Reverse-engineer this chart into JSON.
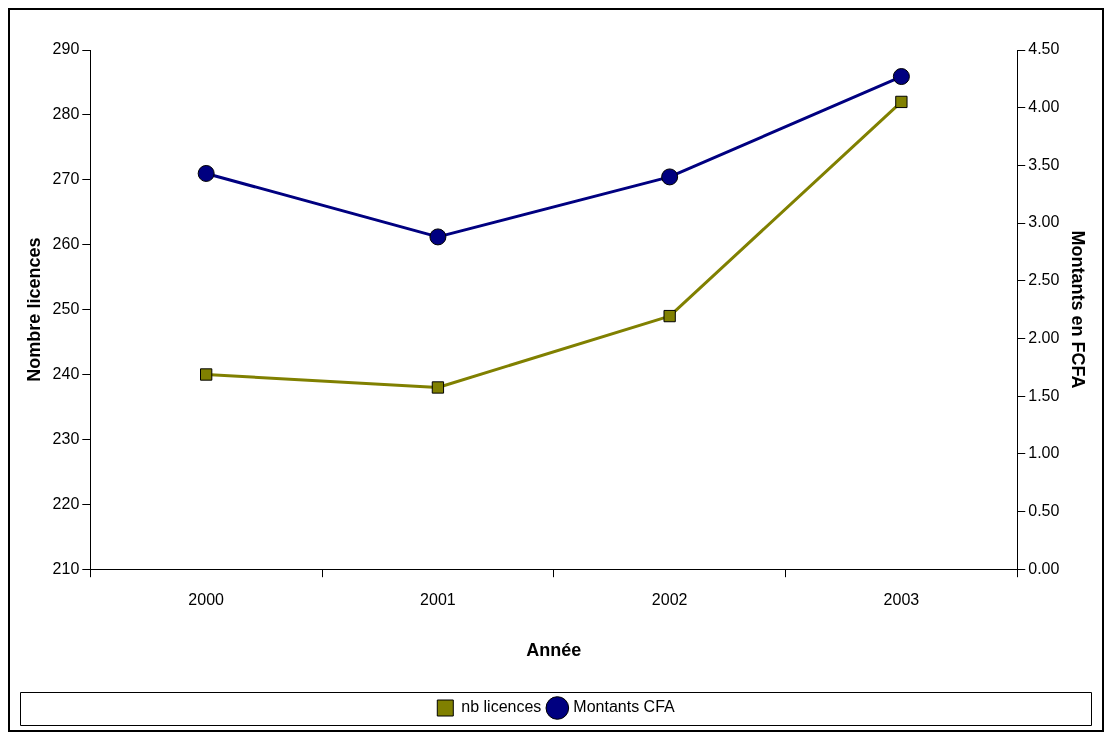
{
  "chart_data": {
    "type": "line",
    "xlabel": "Année",
    "ylabel": "Nombre licences",
    "y2label": "Montants en FCFA",
    "categories": [
      "2000",
      "2001",
      "2002",
      "2003"
    ],
    "series": [
      {
        "name": "nb licences",
        "color": "#808000",
        "marker": "square",
        "values": [
          240,
          238,
          249,
          282
        ]
      },
      {
        "name": "Montants CFA",
        "color": "#000080",
        "marker": "circle",
        "axis": "y2",
        "values": [
          3.43,
          2.88,
          3.4,
          4.27
        ]
      }
    ],
    "ylim": [
      210,
      290
    ],
    "yticks": [
      210,
      220,
      230,
      240,
      250,
      260,
      270,
      280,
      290
    ],
    "y2lim": [
      0,
      4.5
    ],
    "y2ticks": [
      {
        "value": 0,
        "label": "0.00"
      },
      {
        "value": 0.5,
        "label": "0.50"
      },
      {
        "value": 1,
        "label": "1.00"
      },
      {
        "value": 1.5,
        "label": "1.50"
      },
      {
        "value": 2,
        "label": "2.00"
      },
      {
        "value": 2.5,
        "label": "2.50"
      },
      {
        "value": 3,
        "label": "3.00"
      },
      {
        "value": 3.5,
        "label": "3.50"
      },
      {
        "value": 4,
        "label": "4.00"
      },
      {
        "value": 4.5,
        "label": "4.50"
      }
    ],
    "grid": false,
    "legend": "bottom",
    "line_style": "solid"
  }
}
